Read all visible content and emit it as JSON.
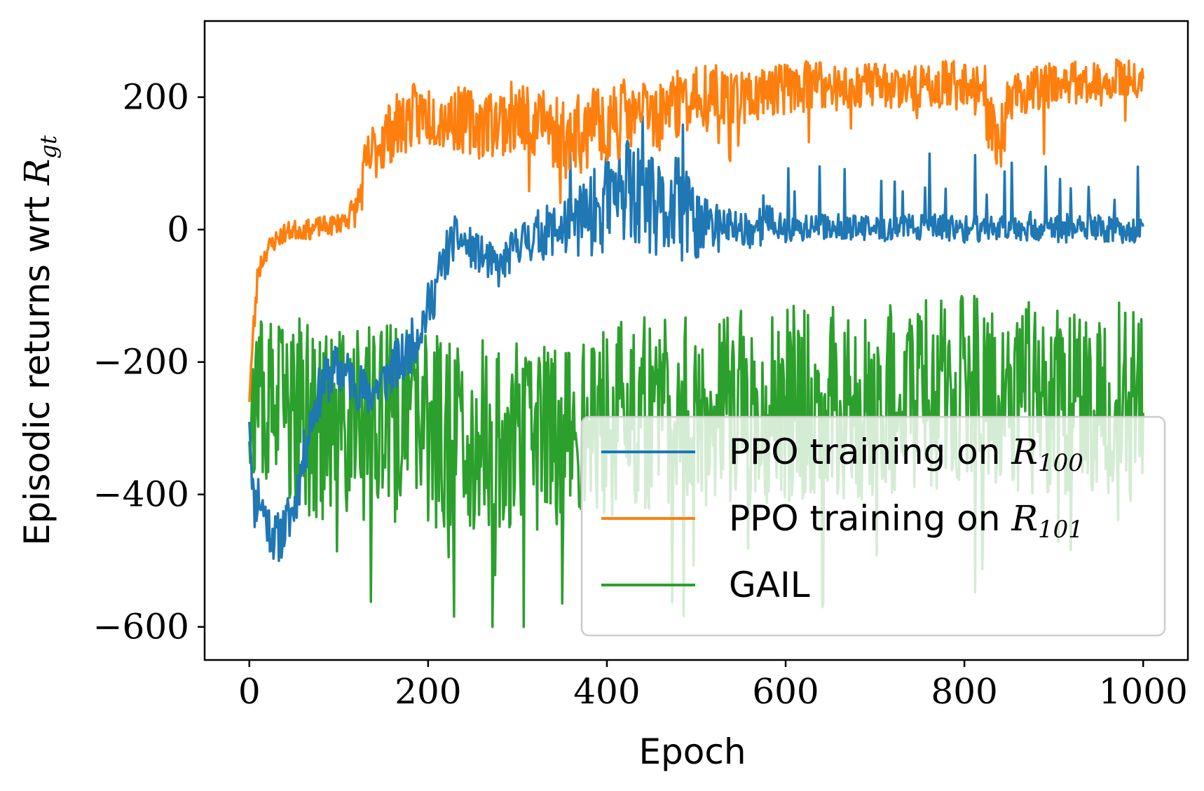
{
  "chart_data": {
    "type": "line",
    "title": "",
    "xlabel": "Epoch",
    "ylabel_prefix": "Episodic returns wrt ",
    "ylabel_symbol": "R",
    "ylabel_subscript": "gt",
    "xlim": [
      -50,
      1050
    ],
    "ylim": [
      -650,
      315
    ],
    "x_ticks": [
      0,
      200,
      400,
      600,
      800,
      1000
    ],
    "y_ticks": [
      -600,
      -400,
      -200,
      0,
      200
    ],
    "x_tick_labels": [
      "0",
      "200",
      "400",
      "600",
      "800",
      "1000"
    ],
    "y_tick_labels": [
      "−600",
      "−400",
      "−200",
      "0",
      "200"
    ],
    "legend_position": "lower-right",
    "legend": [
      {
        "prefix": "PPO training on ",
        "symbol": "R",
        "subscript": "100"
      },
      {
        "prefix": "PPO training on ",
        "symbol": "R",
        "subscript": "101"
      },
      {
        "prefix": "GAIL",
        "symbol": "",
        "subscript": ""
      }
    ],
    "series": [
      {
        "name": "PPO training on R100",
        "color": "#1f77b4",
        "x": [
          0,
          5,
          10,
          20,
          30,
          40,
          50,
          60,
          70,
          80,
          90,
          100,
          110,
          120,
          130,
          140,
          150,
          160,
          170,
          180,
          190,
          200,
          210,
          220,
          230,
          240,
          250,
          260,
          270,
          280,
          290,
          300,
          320,
          340,
          360,
          380,
          400,
          420,
          440,
          460,
          480,
          500,
          520,
          540,
          560,
          580,
          600,
          650,
          700,
          750,
          800,
          850,
          900,
          950,
          1000
        ],
        "values": [
          -280,
          -420,
          -400,
          -440,
          -470,
          -450,
          -420,
          -350,
          -280,
          -240,
          -220,
          -210,
          -220,
          -230,
          -250,
          -240,
          -230,
          -210,
          -200,
          -180,
          -150,
          -120,
          -80,
          -40,
          -10,
          -20,
          -30,
          -40,
          -50,
          -60,
          -40,
          -20,
          -10,
          0,
          10,
          20,
          40,
          60,
          40,
          20,
          30,
          10,
          0,
          5,
          0,
          10,
          0,
          5,
          0,
          5,
          0,
          5,
          0,
          0,
          0
        ],
        "noise_amplitude": [
          20,
          40,
          40,
          40,
          40,
          40,
          40,
          40,
          40,
          40,
          40,
          40,
          40,
          40,
          40,
          40,
          40,
          40,
          40,
          40,
          40,
          40,
          40,
          40,
          30,
          30,
          30,
          30,
          30,
          30,
          30,
          30,
          40,
          40,
          50,
          60,
          80,
          80,
          80,
          80,
          80,
          60,
          40,
          30,
          30,
          30,
          20,
          20,
          20,
          20,
          20,
          20,
          20,
          20,
          20
        ]
      },
      {
        "name": "PPO training on R101",
        "color": "#ff7f0e",
        "x": [
          0,
          5,
          10,
          20,
          30,
          40,
          50,
          60,
          70,
          80,
          90,
          100,
          110,
          120,
          125,
          130,
          140,
          150,
          160,
          170,
          180,
          200,
          220,
          240,
          260,
          280,
          300,
          320,
          340,
          360,
          380,
          400,
          420,
          440,
          460,
          480,
          500,
          520,
          540,
          560,
          580,
          600,
          650,
          700,
          750,
          800,
          820,
          840,
          850,
          900,
          950,
          1000
        ],
        "values": [
          -250,
          -150,
          -60,
          -30,
          -15,
          -5,
          0,
          0,
          0,
          5,
          5,
          10,
          20,
          30,
          60,
          90,
          120,
          140,
          150,
          160,
          170,
          175,
          170,
          165,
          160,
          165,
          170,
          165,
          150,
          140,
          150,
          160,
          170,
          175,
          180,
          190,
          200,
          205,
          205,
          200,
          210,
          215,
          215,
          220,
          215,
          225,
          225,
          120,
          200,
          220,
          225,
          230
        ],
        "noise_amplitude": [
          20,
          30,
          20,
          15,
          15,
          15,
          15,
          15,
          15,
          15,
          15,
          15,
          20,
          25,
          40,
          50,
          50,
          50,
          50,
          50,
          50,
          50,
          50,
          50,
          55,
          55,
          55,
          55,
          60,
          60,
          60,
          60,
          60,
          55,
          55,
          50,
          45,
          45,
          45,
          45,
          40,
          40,
          40,
          35,
          35,
          35,
          35,
          60,
          35,
          35,
          30,
          30
        ]
      },
      {
        "name": "GAIL",
        "color": "#2ca02c",
        "x": [
          0,
          50,
          100,
          150,
          200,
          250,
          300,
          350,
          400,
          450,
          500,
          550,
          600,
          650,
          700,
          750,
          800,
          850,
          900,
          950,
          1000
        ],
        "values": [
          -260,
          -280,
          -300,
          -290,
          -300,
          -310,
          -320,
          -300,
          -290,
          -280,
          -270,
          -270,
          -260,
          -260,
          -260,
          -250,
          -250,
          -250,
          -250,
          -250,
          -250
        ],
        "noise_amplitude": [
          120,
          150,
          150,
          150,
          150,
          150,
          150,
          150,
          150,
          150,
          150,
          150,
          150,
          150,
          150,
          150,
          150,
          150,
          150,
          150,
          150
        ]
      }
    ]
  }
}
